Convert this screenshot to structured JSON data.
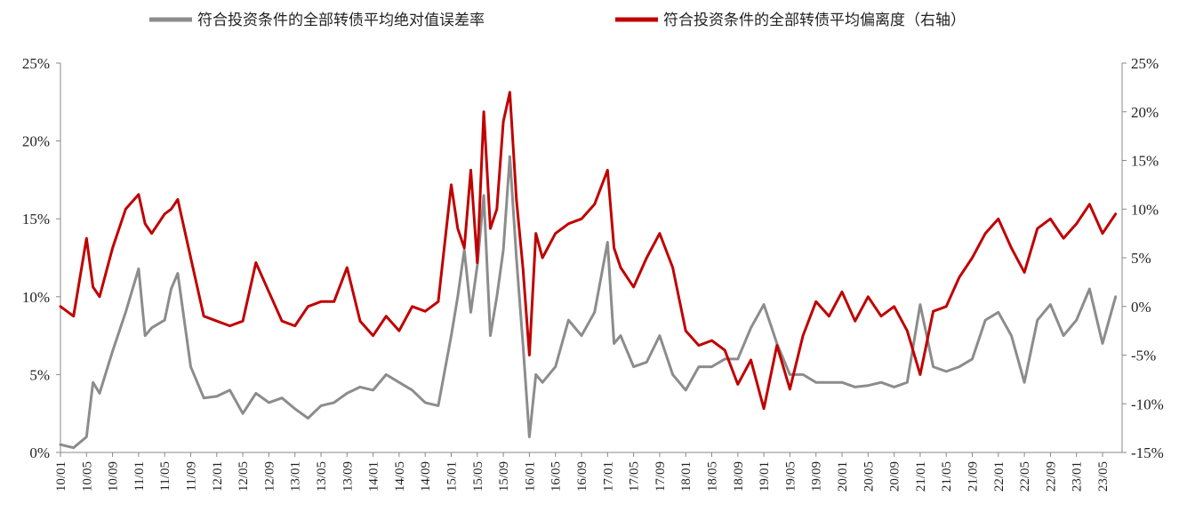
{
  "chart_data": {
    "type": "line",
    "legend_position": "top",
    "grid": false,
    "left_axis": {
      "ylim": [
        0,
        25
      ],
      "ticks": [
        {
          "value": 0,
          "label": "0%"
        },
        {
          "value": 5,
          "label": "5%"
        },
        {
          "value": 10,
          "label": "10%"
        },
        {
          "value": 15,
          "label": "15%"
        },
        {
          "value": 20,
          "label": "20%"
        },
        {
          "value": 25,
          "label": "25%"
        }
      ]
    },
    "right_axis": {
      "ylim": [
        -15,
        25
      ],
      "ticks": [
        {
          "value": -15,
          "label": "-15%"
        },
        {
          "value": -10,
          "label": "-10%"
        },
        {
          "value": -5,
          "label": "-5%"
        },
        {
          "value": 0,
          "label": "0%"
        },
        {
          "value": 5,
          "label": "5%"
        },
        {
          "value": 10,
          "label": "10%"
        },
        {
          "value": 15,
          "label": "15%"
        },
        {
          "value": 20,
          "label": "20%"
        },
        {
          "value": 25,
          "label": "25%"
        }
      ]
    },
    "x_labels": [
      "10/01",
      "10/05",
      "10/09",
      "11/01",
      "11/05",
      "11/09",
      "12/01",
      "12/05",
      "12/09",
      "13/01",
      "13/05",
      "13/09",
      "14/01",
      "14/05",
      "14/09",
      "15/01",
      "15/05",
      "15/09",
      "16/01",
      "16/05",
      "16/09",
      "17/01",
      "17/05",
      "17/09",
      "18/01",
      "18/05",
      "18/09",
      "19/01",
      "19/05",
      "19/09",
      "20/01",
      "20/05",
      "20/09",
      "21/01",
      "21/05",
      "21/09",
      "22/01",
      "22/05",
      "22/09",
      "23/01",
      "23/05"
    ],
    "series": [
      {
        "name": "符合投资条件的全部转债平均绝对值误差率",
        "axis": "left",
        "color": "#8c8c8c",
        "x": [
          "10/01",
          "10/03",
          "10/05",
          "10/06",
          "10/07",
          "10/09",
          "10/11",
          "11/01",
          "11/02",
          "11/03",
          "11/05",
          "11/06",
          "11/07",
          "11/09",
          "11/11",
          "12/01",
          "12/03",
          "12/05",
          "12/07",
          "12/09",
          "12/11",
          "13/01",
          "13/03",
          "13/05",
          "13/07",
          "13/09",
          "13/11",
          "14/01",
          "14/03",
          "14/05",
          "14/07",
          "14/09",
          "14/11",
          "15/01",
          "15/02",
          "15/03",
          "15/04",
          "15/05",
          "15/06",
          "15/07",
          "15/08",
          "15/09",
          "15/10",
          "15/11",
          "15/12",
          "16/01",
          "16/02",
          "16/03",
          "16/05",
          "16/07",
          "16/09",
          "16/11",
          "17/01",
          "17/02",
          "17/03",
          "17/05",
          "17/07",
          "17/09",
          "17/11",
          "18/01",
          "18/03",
          "18/05",
          "18/07",
          "18/09",
          "18/11",
          "19/01",
          "19/03",
          "19/05",
          "19/07",
          "19/09",
          "19/11",
          "20/01",
          "20/03",
          "20/05",
          "20/07",
          "20/09",
          "20/11",
          "21/01",
          "21/03",
          "21/05",
          "21/07",
          "21/09",
          "21/11",
          "22/01",
          "22/03",
          "22/05",
          "22/07",
          "22/09",
          "22/11",
          "23/01",
          "23/03",
          "23/05",
          "23/07"
        ],
        "y": [
          0.5,
          0.3,
          1.0,
          4.5,
          3.8,
          6.5,
          9.0,
          11.8,
          7.5,
          8.0,
          8.5,
          10.5,
          11.5,
          5.5,
          3.5,
          3.6,
          4.0,
          2.5,
          3.8,
          3.2,
          3.5,
          2.8,
          2.2,
          3.0,
          3.2,
          3.8,
          4.2,
          4.0,
          5.0,
          4.5,
          4.0,
          3.2,
          3.0,
          7.5,
          10.0,
          13.0,
          9.0,
          12.0,
          16.5,
          7.5,
          10.0,
          13.0,
          19.0,
          12.5,
          7.0,
          1.0,
          5.0,
          4.5,
          5.5,
          8.5,
          7.5,
          9.0,
          13.5,
          7.0,
          7.5,
          5.5,
          5.8,
          7.5,
          5.0,
          4.0,
          5.5,
          5.5,
          6.0,
          6.0,
          8.0,
          9.5,
          7.0,
          5.0,
          5.0,
          4.5,
          4.5,
          4.5,
          4.2,
          4.3,
          4.5,
          4.2,
          4.5,
          9.5,
          5.5,
          5.2,
          5.5,
          6.0,
          8.5,
          9.0,
          7.5,
          4.5,
          8.5,
          9.5,
          7.5,
          8.5,
          10.5,
          7.0,
          10.0
        ]
      },
      {
        "name": "符合投资条件的全部转债平均偏离度（右轴）",
        "axis": "right",
        "color": "#c00000",
        "x": [
          "10/01",
          "10/03",
          "10/05",
          "10/06",
          "10/07",
          "10/09",
          "10/11",
          "11/01",
          "11/02",
          "11/03",
          "11/05",
          "11/06",
          "11/07",
          "11/09",
          "11/11",
          "12/01",
          "12/03",
          "12/05",
          "12/07",
          "12/09",
          "12/11",
          "13/01",
          "13/03",
          "13/05",
          "13/07",
          "13/09",
          "13/11",
          "14/01",
          "14/03",
          "14/05",
          "14/07",
          "14/09",
          "14/11",
          "15/01",
          "15/02",
          "15/03",
          "15/04",
          "15/05",
          "15/06",
          "15/07",
          "15/08",
          "15/09",
          "15/10",
          "15/11",
          "15/12",
          "16/01",
          "16/02",
          "16/03",
          "16/05",
          "16/07",
          "16/09",
          "16/11",
          "17/01",
          "17/02",
          "17/03",
          "17/05",
          "17/07",
          "17/09",
          "17/11",
          "18/01",
          "18/03",
          "18/05",
          "18/07",
          "18/09",
          "18/11",
          "19/01",
          "19/03",
          "19/05",
          "19/07",
          "19/09",
          "19/11",
          "20/01",
          "20/03",
          "20/05",
          "20/07",
          "20/09",
          "20/11",
          "21/01",
          "21/03",
          "21/05",
          "21/07",
          "21/09",
          "21/11",
          "22/01",
          "22/03",
          "22/05",
          "22/07",
          "22/09",
          "22/11",
          "23/01",
          "23/03",
          "23/05",
          "23/07"
        ],
        "y": [
          0.0,
          -1.0,
          7.0,
          2.0,
          1.0,
          6.0,
          10.0,
          11.5,
          8.5,
          7.5,
          9.5,
          10.0,
          11.0,
          5.0,
          -1.0,
          -1.5,
          -2.0,
          -1.5,
          4.5,
          1.5,
          -1.5,
          -2.0,
          0.0,
          0.5,
          0.5,
          4.0,
          -1.5,
          -3.0,
          -1.0,
          -2.5,
          0.0,
          -0.5,
          0.5,
          12.5,
          8.0,
          6.0,
          14.0,
          4.5,
          20.0,
          8.0,
          10.0,
          19.0,
          22.0,
          11.0,
          4.0,
          -5.0,
          7.5,
          5.0,
          7.5,
          8.5,
          9.0,
          10.5,
          14.0,
          6.0,
          4.0,
          2.0,
          5.0,
          7.5,
          4.0,
          -2.5,
          -4.0,
          -3.5,
          -4.5,
          -8.0,
          -5.5,
          -10.5,
          -4.0,
          -8.5,
          -3.0,
          0.5,
          -1.0,
          1.5,
          -1.5,
          1.0,
          -1.0,
          0.0,
          -2.5,
          -7.0,
          -0.5,
          0.0,
          3.0,
          5.0,
          7.5,
          9.0,
          6.0,
          3.5,
          8.0,
          9.0,
          7.0,
          8.5,
          10.5,
          7.5,
          9.5
        ]
      }
    ]
  }
}
